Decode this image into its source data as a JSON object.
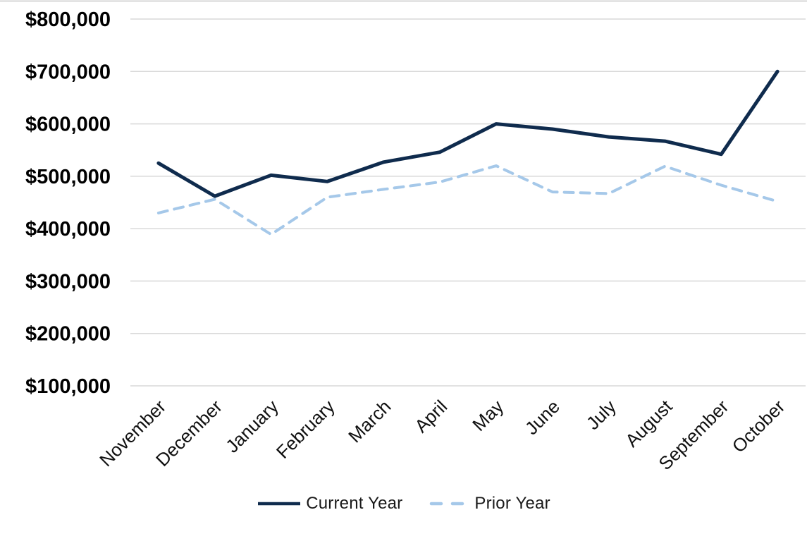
{
  "chart_data": {
    "type": "line",
    "title": "",
    "categories": [
      "November",
      "December",
      "January",
      "February",
      "March",
      "April",
      "May",
      "June",
      "July",
      "August",
      "September",
      "October"
    ],
    "series": [
      {
        "name": "Current Year",
        "style": "solid",
        "color": "#0f2b4d",
        "values": [
          525000,
          462000,
          502000,
          490000,
          527000,
          546000,
          600000,
          590000,
          575000,
          567000,
          542000,
          700000
        ]
      },
      {
        "name": "Prior Year",
        "style": "dashed",
        "color": "#a5c8e9",
        "values": [
          430000,
          456000,
          389000,
          460000,
          475000,
          489000,
          520000,
          470000,
          467000,
          519000,
          483000,
          452000
        ]
      }
    ],
    "y_axis": {
      "min": 100000,
      "max": 800000,
      "step": 100000,
      "tick_labels": [
        "$100,000",
        "$200,000",
        "$300,000",
        "$400,000",
        "$500,000",
        "$600,000",
        "$700,000",
        "$800,000"
      ]
    },
    "x_axis": {
      "label_rotation_deg": 45
    },
    "grid": true,
    "legend_position": "bottom"
  },
  "colors": {
    "gridline": "#d9d9d9",
    "top_border": "#d6d6d6",
    "axis_text": "#000000"
  }
}
